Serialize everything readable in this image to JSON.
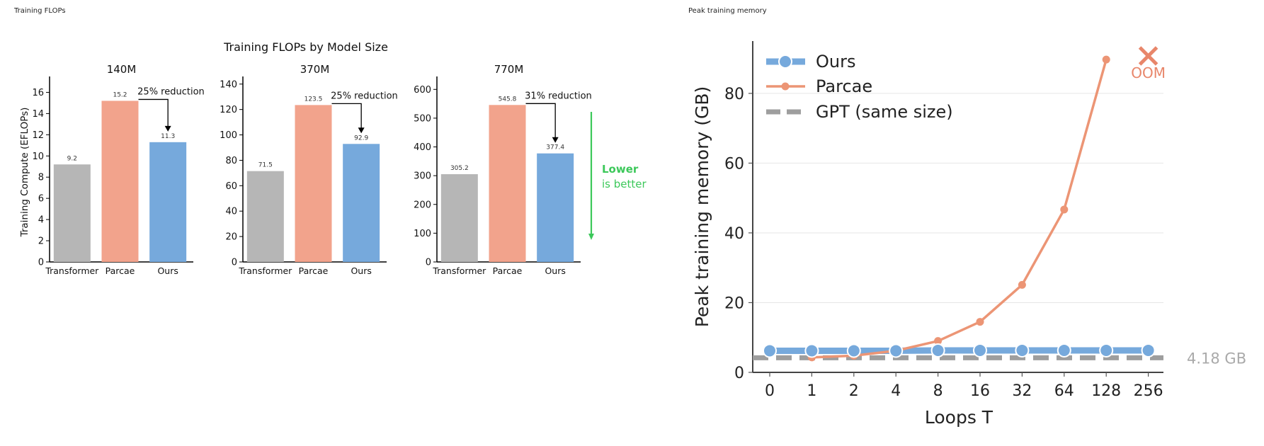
{
  "panels": {
    "left_title": "Training FLOPs",
    "right_title": "Peak training memory"
  },
  "colors": {
    "transformer": "#b6b6b6",
    "parcae": "#f2a38c",
    "ours": "#76a9dc",
    "parcae_line": "#ec9575",
    "gpt_line": "#9e9e9e",
    "lower_better": "#3cc85a",
    "oom": "#e8866a"
  },
  "chart_data": [
    {
      "type": "bar",
      "title": "Training FLOPs by Model Size",
      "subtitle": "140M",
      "ylabel": "Training Compute  (EFLOPs)",
      "categories": [
        "Transformer",
        "Parcae",
        "Ours"
      ],
      "values": [
        9.2,
        15.2,
        11.3
      ],
      "value_labels": [
        "9.2",
        "15.2",
        "11.3"
      ],
      "yticks": [
        0,
        2,
        4,
        6,
        8,
        10,
        12,
        14,
        16
      ],
      "ylim": [
        0,
        17.5
      ],
      "annotation": "25% reduction",
      "grid": false
    },
    {
      "type": "bar",
      "subtitle": "370M",
      "categories": [
        "Transformer",
        "Parcae",
        "Ours"
      ],
      "values": [
        71.5,
        123.5,
        92.9
      ],
      "value_labels": [
        "71.5",
        "123.5",
        "92.9"
      ],
      "yticks": [
        0,
        20,
        40,
        60,
        80,
        100,
        120,
        140
      ],
      "ylim": [
        0,
        146
      ],
      "annotation": "25% reduction",
      "grid": false
    },
    {
      "type": "bar",
      "subtitle": "770M",
      "categories": [
        "Transformer",
        "Parcae",
        "Ours"
      ],
      "values": [
        305.2,
        545.8,
        377.4
      ],
      "value_labels": [
        "305.2",
        "545.8",
        "377.4"
      ],
      "yticks": [
        0,
        100,
        200,
        300,
        400,
        500,
        600
      ],
      "ylim": [
        0,
        645
      ],
      "annotation": "31% reduction",
      "lower_note_1": "Lower",
      "lower_note_2": "is better",
      "grid": false
    },
    {
      "type": "line",
      "xlabel": "Loops T",
      "ylabel": "Peak training memory (GB)",
      "x": [
        "0",
        "1",
        "2",
        "4",
        "8",
        "16",
        "32",
        "64",
        "128",
        "256"
      ],
      "yticks": [
        0,
        20,
        40,
        60,
        80
      ],
      "ylim": [
        0,
        95
      ],
      "grid": true,
      "legend": "top-left",
      "series": [
        {
          "name": "Ours",
          "values": [
            6.2,
            6.2,
            6.2,
            6.2,
            6.3,
            6.3,
            6.3,
            6.3,
            6.3,
            6.3
          ]
        },
        {
          "name": "Parcae",
          "values": [
            null,
            4.3,
            4.8,
            6.2,
            9.0,
            14.5,
            25.1,
            46.7,
            89.7,
            null
          ]
        },
        {
          "name": "GPT (same size)",
          "values": [
            4.18,
            4.18,
            4.18,
            4.18,
            4.18,
            4.18,
            4.18,
            4.18,
            4.18,
            4.18
          ]
        }
      ],
      "gpt_label": "4.18 GB",
      "oom_label": "OOM",
      "oom_at": "256"
    }
  ]
}
